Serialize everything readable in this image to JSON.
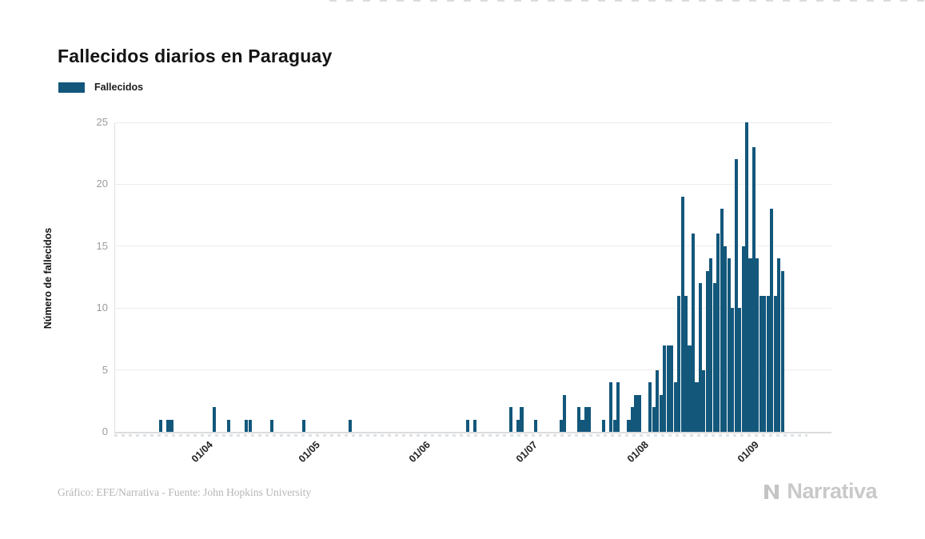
{
  "page": {
    "background": "#ffffff"
  },
  "header": {
    "title": "Fallecidos diarios en Paraguay"
  },
  "legend": {
    "label": "Fallecidos",
    "color": "#13577b"
  },
  "chart_data": {
    "type": "bar",
    "title": "Fallecidos diarios en Paraguay",
    "xlabel": "",
    "ylabel": "Número de fallecidos",
    "ylim": [
      0,
      25
    ],
    "yticks": [
      0,
      5,
      10,
      15,
      20,
      25
    ],
    "grid": true,
    "legend_position": "top-left",
    "bar_color": "#13577b",
    "x_domain": [
      "2020-03-07",
      "2020-09-17"
    ],
    "xticks": [
      {
        "date": "2020-04-01",
        "label": "01/04"
      },
      {
        "date": "2020-05-01",
        "label": "01/05"
      },
      {
        "date": "2020-06-01",
        "label": "01/06"
      },
      {
        "date": "2020-07-01",
        "label": "01/07"
      },
      {
        "date": "2020-08-01",
        "label": "01/08"
      },
      {
        "date": "2020-09-01",
        "label": "01/09"
      }
    ],
    "series": [
      {
        "name": "Fallecidos",
        "points": [
          {
            "date": "2020-03-20",
            "value": 1
          },
          {
            "date": "2020-03-22",
            "value": 1
          },
          {
            "date": "2020-03-23",
            "value": 1
          },
          {
            "date": "2020-04-04",
            "value": 2
          },
          {
            "date": "2020-04-08",
            "value": 1
          },
          {
            "date": "2020-04-13",
            "value": 1
          },
          {
            "date": "2020-04-14",
            "value": 1
          },
          {
            "date": "2020-04-20",
            "value": 1
          },
          {
            "date": "2020-04-29",
            "value": 1
          },
          {
            "date": "2020-05-12",
            "value": 1
          },
          {
            "date": "2020-06-14",
            "value": 1
          },
          {
            "date": "2020-06-16",
            "value": 1
          },
          {
            "date": "2020-06-26",
            "value": 2
          },
          {
            "date": "2020-06-28",
            "value": 1
          },
          {
            "date": "2020-06-29",
            "value": 2
          },
          {
            "date": "2020-07-03",
            "value": 1
          },
          {
            "date": "2020-07-10",
            "value": 1
          },
          {
            "date": "2020-07-11",
            "value": 3
          },
          {
            "date": "2020-07-15",
            "value": 2
          },
          {
            "date": "2020-07-16",
            "value": 1
          },
          {
            "date": "2020-07-17",
            "value": 2
          },
          {
            "date": "2020-07-18",
            "value": 2
          },
          {
            "date": "2020-07-22",
            "value": 1
          },
          {
            "date": "2020-07-24",
            "value": 4
          },
          {
            "date": "2020-07-25",
            "value": 1
          },
          {
            "date": "2020-07-26",
            "value": 4
          },
          {
            "date": "2020-07-29",
            "value": 1
          },
          {
            "date": "2020-07-30",
            "value": 2
          },
          {
            "date": "2020-07-31",
            "value": 3
          },
          {
            "date": "2020-08-01",
            "value": 3
          },
          {
            "date": "2020-08-04",
            "value": 4
          },
          {
            "date": "2020-08-05",
            "value": 2
          },
          {
            "date": "2020-08-06",
            "value": 5
          },
          {
            "date": "2020-08-07",
            "value": 3
          },
          {
            "date": "2020-08-08",
            "value": 7
          },
          {
            "date": "2020-08-09",
            "value": 7
          },
          {
            "date": "2020-08-10",
            "value": 7
          },
          {
            "date": "2020-08-11",
            "value": 4
          },
          {
            "date": "2020-08-12",
            "value": 11
          },
          {
            "date": "2020-08-13",
            "value": 19
          },
          {
            "date": "2020-08-14",
            "value": 11
          },
          {
            "date": "2020-08-15",
            "value": 7
          },
          {
            "date": "2020-08-16",
            "value": 16
          },
          {
            "date": "2020-08-17",
            "value": 4
          },
          {
            "date": "2020-08-18",
            "value": 12
          },
          {
            "date": "2020-08-19",
            "value": 5
          },
          {
            "date": "2020-08-20",
            "value": 13
          },
          {
            "date": "2020-08-21",
            "value": 14
          },
          {
            "date": "2020-08-22",
            "value": 12
          },
          {
            "date": "2020-08-23",
            "value": 16
          },
          {
            "date": "2020-08-24",
            "value": 18
          },
          {
            "date": "2020-08-25",
            "value": 15
          },
          {
            "date": "2020-08-26",
            "value": 14
          },
          {
            "date": "2020-08-27",
            "value": 10
          },
          {
            "date": "2020-08-28",
            "value": 22
          },
          {
            "date": "2020-08-29",
            "value": 10
          },
          {
            "date": "2020-08-30",
            "value": 15
          },
          {
            "date": "2020-08-31",
            "value": 25
          },
          {
            "date": "2020-09-01",
            "value": 14
          },
          {
            "date": "2020-09-02",
            "value": 23
          },
          {
            "date": "2020-09-03",
            "value": 14
          },
          {
            "date": "2020-09-04",
            "value": 11
          },
          {
            "date": "2020-09-05",
            "value": 11
          },
          {
            "date": "2020-09-06",
            "value": 11
          },
          {
            "date": "2020-09-07",
            "value": 18
          },
          {
            "date": "2020-09-08",
            "value": 11
          },
          {
            "date": "2020-09-09",
            "value": 14
          },
          {
            "date": "2020-09-10",
            "value": 13
          }
        ]
      }
    ]
  },
  "footer": {
    "credit": "Gráfico: EFE/Narrativa - Fuente: John Hopkins University",
    "brand": "Narrativa"
  }
}
